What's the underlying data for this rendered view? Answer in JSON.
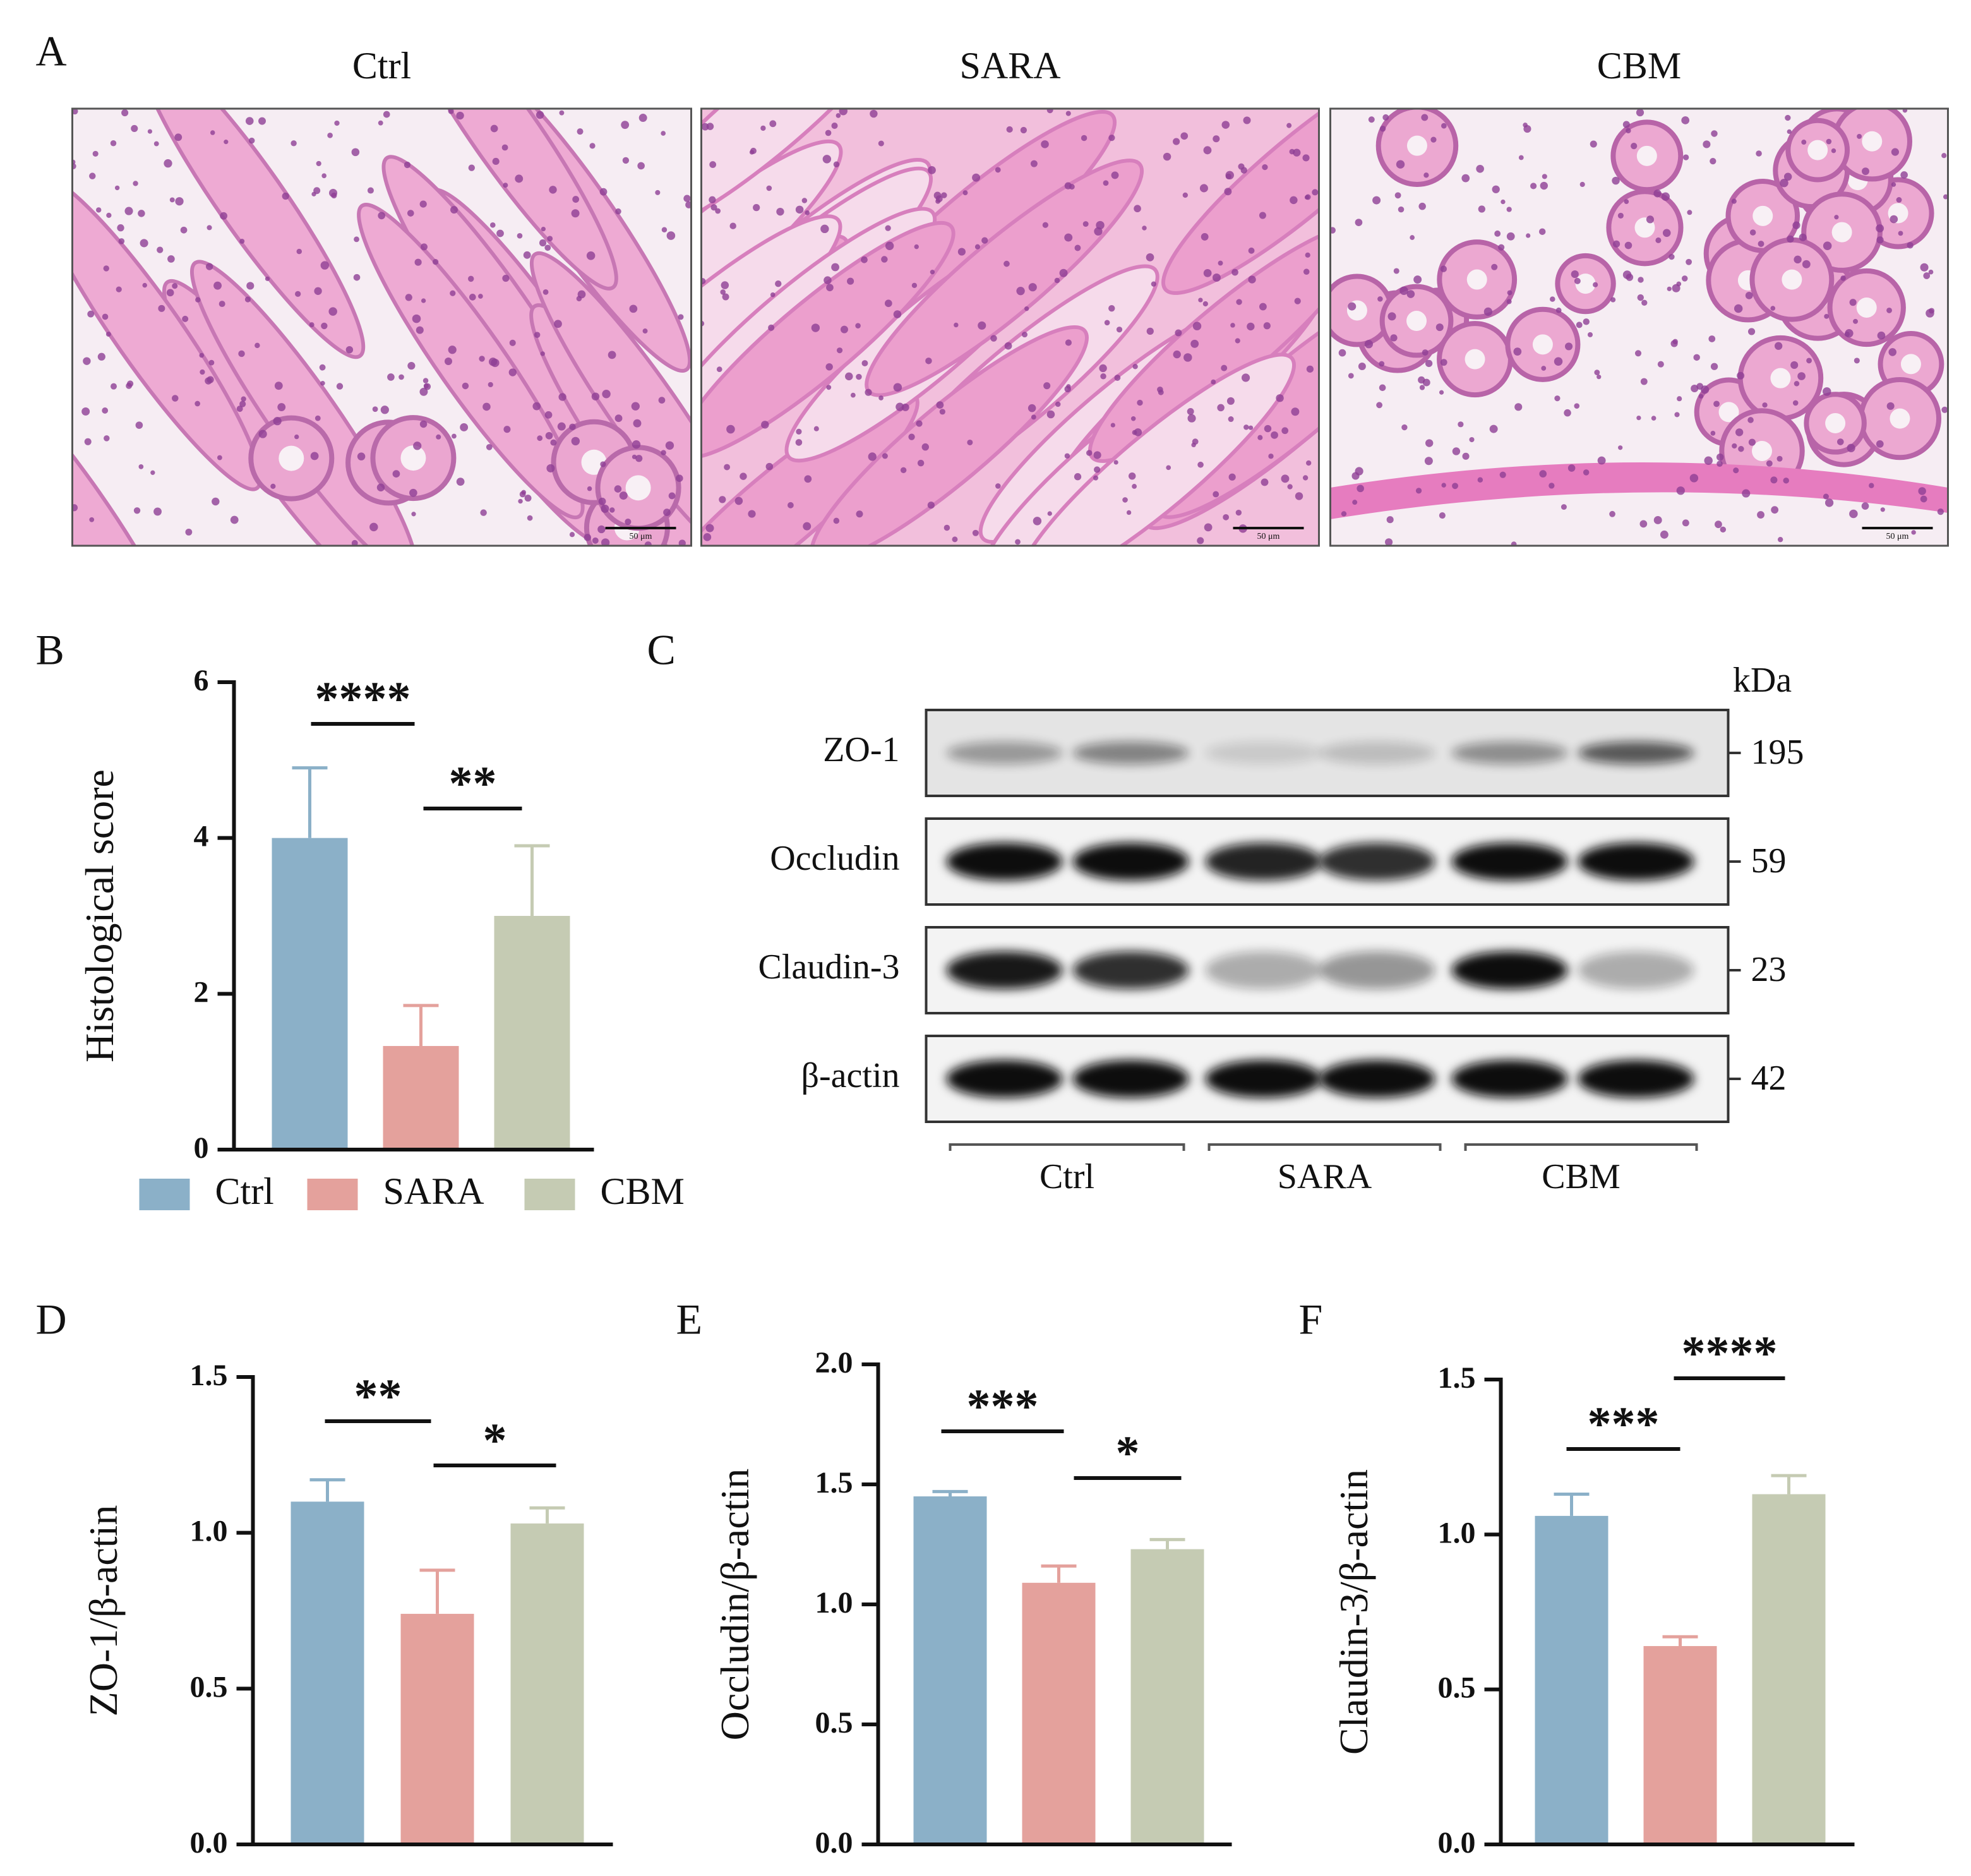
{
  "histology": {
    "label": "A",
    "titles": [
      "Ctrl",
      "SARA",
      "CBM"
    ],
    "scale_bar": "50 μm"
  },
  "western_blot": {
    "label": "C",
    "unit": "kDa",
    "proteins": [
      "ZO-1",
      "Occludin",
      "Claudin-3",
      "β-actin"
    ],
    "weights": [
      195,
      59,
      23,
      42
    ],
    "groups": [
      "Ctrl",
      "SARA",
      "CBM"
    ]
  },
  "chart_data": [
    {
      "type": "bar",
      "label": "B",
      "y_label": "Histological score",
      "categories": [
        "Ctrl",
        "SARA",
        "CBM"
      ],
      "values": [
        4,
        1.33,
        3
      ],
      "errors": [
        0.9,
        0.52,
        0.9
      ],
      "colors": [
        "#8bb0c8",
        "#e4a19c",
        "#c5cbb3"
      ],
      "ylim": [
        0,
        6
      ],
      "yticks": [
        0,
        2,
        4,
        6
      ],
      "significance": [
        "****",
        "**"
      ],
      "legend": "bottom"
    },
    {
      "type": "bar",
      "label": "D",
      "y_label": "ZO-1/β-actin",
      "values": [
        1.1,
        0.74,
        1.03
      ],
      "errors": [
        0.07,
        0.14,
        0.05
      ],
      "colors": [
        "#8bb0c8",
        "#e4a19c",
        "#c5cbb3"
      ],
      "ylim": [
        0,
        1.5
      ],
      "yticks": [
        {
          "value": 0,
          "label": "0.0"
        },
        0.5,
        {
          "value": 1,
          "label": "1.0"
        },
        1.5
      ],
      "significance": [
        "**",
        "*"
      ]
    },
    {
      "type": "bar",
      "label": "E",
      "y_label": "Occludin/β-actin",
      "values": [
        1.45,
        1.09,
        1.23
      ],
      "errors": [
        0.02,
        0.07,
        0.04
      ],
      "colors": [
        "#8bb0c8",
        "#e4a19c",
        "#c5cbb3"
      ],
      "ylim": [
        0,
        2
      ],
      "yticks": [
        {
          "value": 0,
          "label": "0.0"
        },
        0.5,
        {
          "value": 1,
          "label": "1.0"
        },
        1.5,
        {
          "value": 2,
          "label": "2.0"
        }
      ],
      "significance": [
        "***",
        "*"
      ]
    },
    {
      "type": "bar",
      "label": "F",
      "y_label": "Claudin-3/β-actin",
      "values": [
        1.06,
        0.64,
        1.13
      ],
      "errors": [
        0.07,
        0.03,
        0.06
      ],
      "colors": [
        "#8bb0c8",
        "#e4a19c",
        "#c5cbb3"
      ],
      "ylim": [
        0,
        1.5
      ],
      "yticks": [
        {
          "value": 0,
          "label": "0.0"
        },
        0.5,
        {
          "value": 1,
          "label": "1.0"
        },
        1.5
      ],
      "significance": [
        "***",
        "****"
      ]
    }
  ]
}
